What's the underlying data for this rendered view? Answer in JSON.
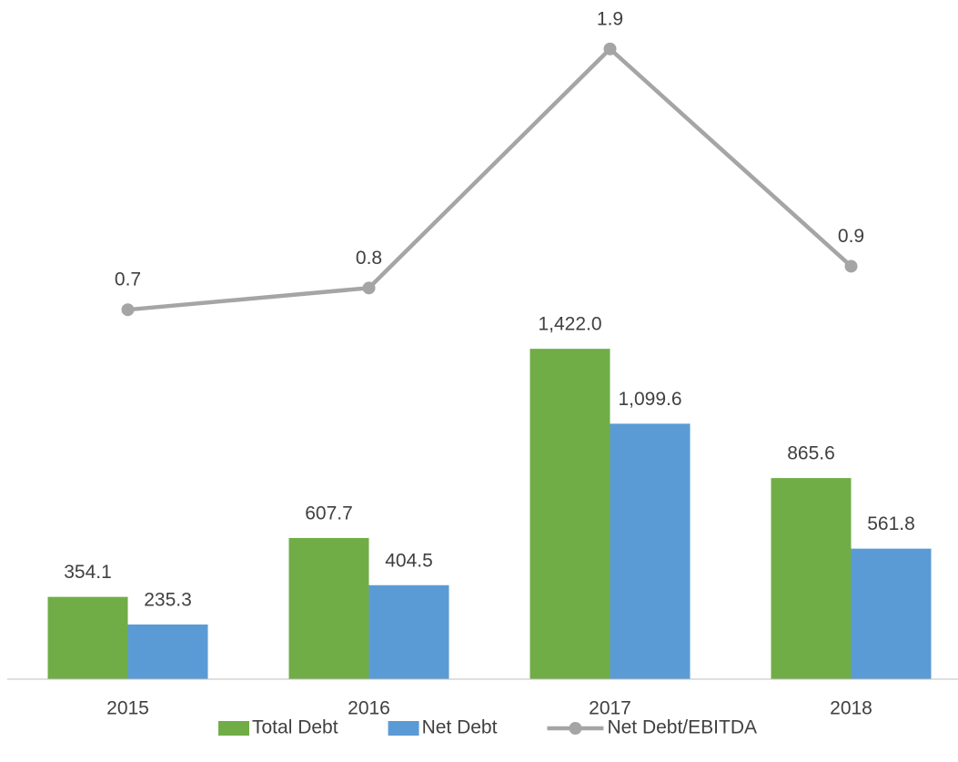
{
  "chart_data": {
    "type": "bar_line",
    "categories": [
      "2015",
      "2016",
      "2017",
      "2018"
    ],
    "series": [
      {
        "name": "Total Debt",
        "type": "bar",
        "color": "#70ad47",
        "values": [
          354.1,
          607.7,
          1422.0,
          865.6
        ],
        "value_labels": [
          "354.1",
          "607.7",
          "1,422.0",
          "865.6"
        ]
      },
      {
        "name": "Net Debt",
        "type": "bar",
        "color": "#5b9bd5",
        "values": [
          235.3,
          404.5,
          1099.6,
          561.8
        ],
        "value_labels": [
          "235.3",
          "404.5",
          "1,099.6",
          "561.8"
        ]
      },
      {
        "name": "Net Debt/EBITDA",
        "type": "line",
        "axis": "y2",
        "color": "#a5a5a5",
        "values": [
          0.7,
          0.8,
          1.9,
          0.9
        ],
        "value_labels": [
          "0.7",
          "0.8",
          "1.9",
          "0.9"
        ]
      }
    ],
    "ylim": [
      0,
      2900
    ],
    "y2lim": [
      -1,
      2.1
    ],
    "legend": "bottom"
  }
}
